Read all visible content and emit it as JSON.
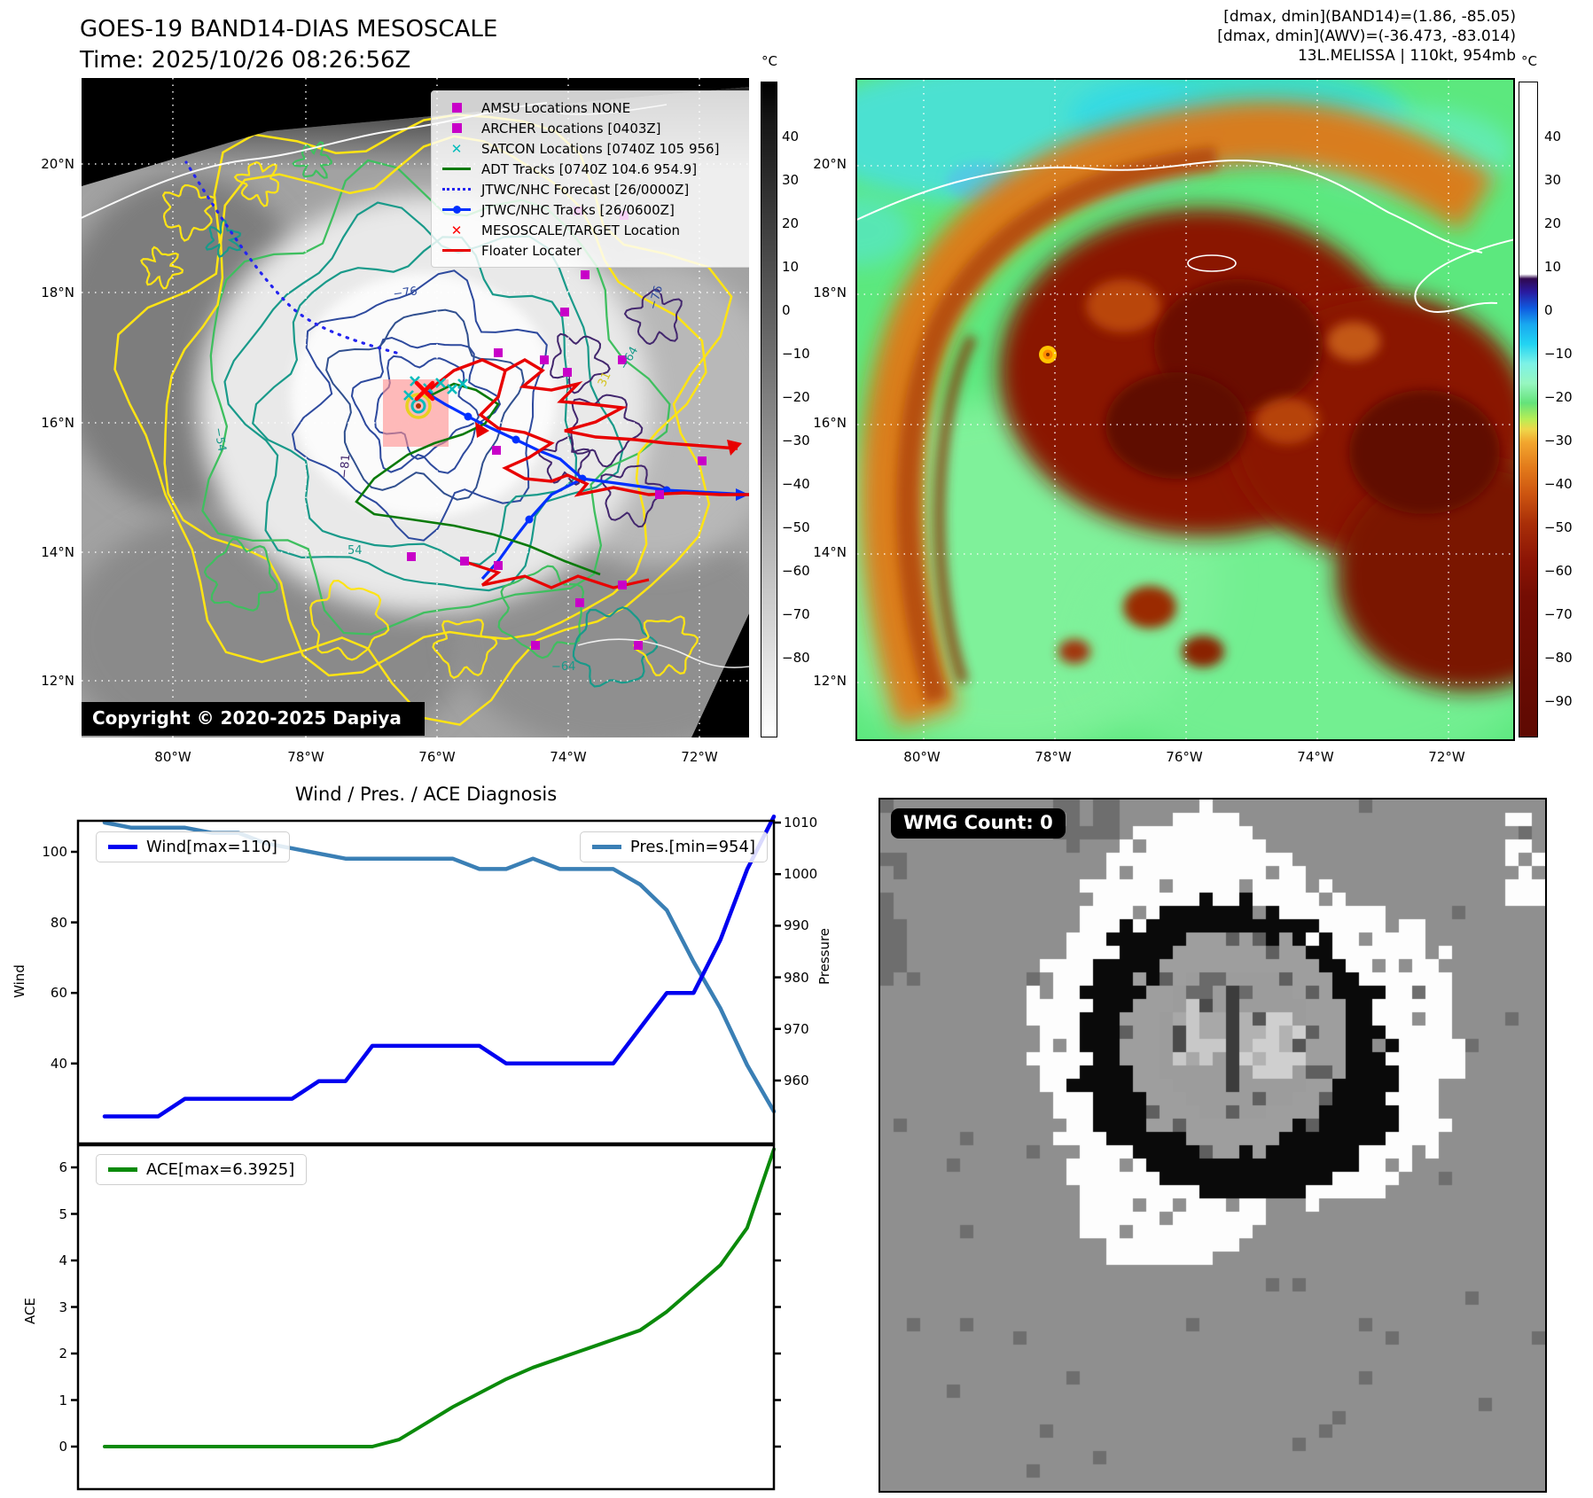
{
  "header": {
    "title_line1": "GOES-19 BAND14-DIAS MESOSCALE",
    "title_line2": "Time: 2025/10/26 08:26:56Z",
    "info_line1": "[dmax, dmin](BAND14)=(1.86, -85.05)",
    "info_line2": "[dmax, dmin](AWV)=(-36.473, -83.014)",
    "info_line3": "13L.MELISSA | 110kt, 954mb"
  },
  "left_map": {
    "lat_labels": [
      "20°N",
      "18°N",
      "16°N",
      "14°N",
      "12°N"
    ],
    "lon_labels": [
      "80°W",
      "78°W",
      "76°W",
      "74°W",
      "72°W"
    ],
    "colorbar": {
      "unit": "°C",
      "ticks": [
        "40",
        "30",
        "20",
        "10",
        "0",
        "−10",
        "−20",
        "−30",
        "−40",
        "−50",
        "−60",
        "−70",
        "−80"
      ]
    },
    "legend": [
      {
        "label": "AMSU Locations NONE",
        "marker": "square",
        "color": "#c800c8"
      },
      {
        "label": "ARCHER Locations [0403Z]",
        "marker": "square",
        "color": "#c800c8"
      },
      {
        "label": "SATCON Locations [0740Z 105 956]",
        "marker": "x",
        "color": "#00bcbc"
      },
      {
        "label": "ADT Tracks [0740Z 104.6 954.9]",
        "marker": "line",
        "color": "#0a7a0a"
      },
      {
        "label": "JTWC/NHC Forecast [26/0000Z]",
        "marker": "dotted",
        "color": "#2424f0"
      },
      {
        "label": "JTWC/NHC Tracks [26/0600Z]",
        "marker": "line-dot",
        "color": "#0030ff"
      },
      {
        "label": "MESOSCALE/TARGET Location",
        "marker": "x",
        "color": "#ff0000"
      },
      {
        "label": "Floater Locater",
        "marker": "line",
        "color": "#e80000"
      }
    ],
    "contour_labels": [
      "−76",
      "−76",
      "−81",
      "−64",
      "31",
      "54",
      "−64",
      "−54"
    ],
    "copyright": "Copyright © 2020-2025 Dapiya"
  },
  "right_map": {
    "lat_labels": [
      "20°N",
      "18°N",
      "16°N",
      "14°N",
      "12°N"
    ],
    "lon_labels": [
      "80°W",
      "78°W",
      "76°W",
      "74°W",
      "72°W"
    ],
    "colorbar": {
      "unit": "°C",
      "ticks": [
        "40",
        "30",
        "20",
        "10",
        "0",
        "−10",
        "−20",
        "−30",
        "−40",
        "−50",
        "−60",
        "−70",
        "−80",
        "−90"
      ]
    }
  },
  "charts": {
    "title": "Wind / Pres. / ACE Diagnosis"
  },
  "chart_data": [
    {
      "type": "line",
      "title": "Wind / Pres. / ACE Diagnosis (upper panel)",
      "x": [
        0,
        1,
        2,
        3,
        4,
        5,
        6,
        7,
        8,
        9,
        10,
        11,
        12,
        13,
        14,
        15,
        16,
        17,
        18,
        19,
        20,
        21,
        22,
        23,
        24,
        25
      ],
      "series": [
        {
          "name": "Wind[max=110]",
          "axis": "left",
          "color": "#0000f0",
          "values": [
            25,
            25,
            25,
            30,
            30,
            30,
            30,
            30,
            35,
            35,
            45,
            45,
            45,
            45,
            45,
            40,
            40,
            40,
            40,
            40,
            50,
            60,
            60,
            75,
            95,
            110
          ]
        },
        {
          "name": "Pres.[min=954]",
          "axis": "right",
          "color": "#3a7fb5",
          "values": [
            1010,
            1009,
            1009,
            1009,
            1008,
            1008,
            1006,
            1005,
            1004,
            1003,
            1003,
            1003,
            1003,
            1003,
            1001,
            1001,
            1003,
            1001,
            1001,
            1001,
            998,
            993,
            983,
            974,
            963,
            954
          ]
        }
      ],
      "left_axis": {
        "label": "Wind",
        "ticks": [
          40,
          60,
          80,
          100
        ],
        "range": [
          17,
          109
        ]
      },
      "right_axis": {
        "label": "Pressure",
        "ticks": [
          960,
          970,
          980,
          990,
          1000,
          1010
        ],
        "range": [
          947,
          1010.5
        ]
      },
      "grid": false,
      "legend_position": "upper-left and upper-right"
    },
    {
      "type": "line",
      "title": "ACE (lower panel)",
      "x": [
        0,
        1,
        2,
        3,
        4,
        5,
        6,
        7,
        8,
        9,
        10,
        11,
        12,
        13,
        14,
        15,
        16,
        17,
        18,
        19,
        20,
        21,
        22,
        23,
        24,
        25
      ],
      "series": [
        {
          "name": "ACE[max=6.3925]",
          "axis": "left",
          "color": "#0a8a0a",
          "values": [
            0,
            0,
            0,
            0,
            0,
            0,
            0,
            0,
            0,
            0,
            0,
            0.15,
            0.5,
            0.85,
            1.15,
            1.45,
            1.7,
            1.9,
            2.1,
            2.3,
            2.5,
            2.9,
            3.4,
            3.9,
            4.7,
            6.39
          ]
        }
      ],
      "left_axis": {
        "label": "ACE",
        "ticks": [
          0,
          1,
          2,
          3,
          4,
          5,
          6
        ],
        "range": [
          -0.15,
          6.48
        ]
      },
      "grid": false,
      "legend_position": "upper-left"
    }
  ],
  "wmg": {
    "label": "WMG Count: 0"
  }
}
